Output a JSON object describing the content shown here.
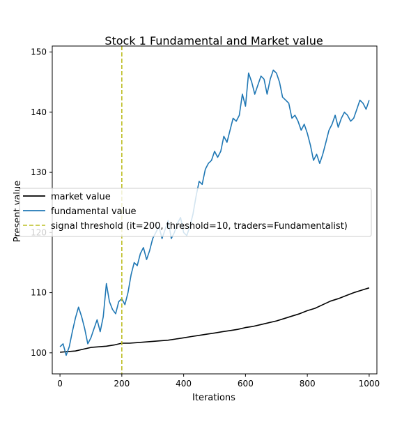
{
  "chart_data": {
    "type": "line",
    "title": "Stock 1 Fundamental and Market value",
    "xlabel": "Iterations",
    "ylabel": "Present value",
    "xlim": [
      -25,
      1025
    ],
    "ylim": [
      96.5,
      151
    ],
    "xticks": [
      "0",
      "200",
      "400",
      "600",
      "800",
      "1000"
    ],
    "yticks": [
      "100",
      "110",
      "120",
      "130",
      "140",
      "150"
    ],
    "grid": false,
    "legend_position": "center-left",
    "series": [
      {
        "name": "market value",
        "color": "#000000",
        "style": "solid",
        "x": [
          0,
          25,
          50,
          75,
          100,
          125,
          150,
          175,
          200,
          225,
          250,
          275,
          300,
          325,
          350,
          375,
          400,
          425,
          450,
          475,
          500,
          525,
          550,
          575,
          600,
          625,
          650,
          675,
          700,
          725,
          750,
          775,
          800,
          825,
          850,
          875,
          900,
          925,
          950,
          975,
          1000
        ],
        "values": [
          100.1,
          100.2,
          100.3,
          100.6,
          100.9,
          101.0,
          101.1,
          101.3,
          101.6,
          101.6,
          101.7,
          101.8,
          101.9,
          102.0,
          102.1,
          102.3,
          102.5,
          102.7,
          102.9,
          103.1,
          103.3,
          103.5,
          103.7,
          103.9,
          104.2,
          104.4,
          104.7,
          105.0,
          105.3,
          105.7,
          106.1,
          106.5,
          107.0,
          107.4,
          108.0,
          108.6,
          109.0,
          109.5,
          110.0,
          110.4,
          110.8
        ]
      },
      {
        "name": "fundamental value",
        "color": "#1f77b4",
        "style": "solid",
        "x": [
          0,
          10,
          20,
          30,
          40,
          50,
          60,
          70,
          80,
          90,
          100,
          110,
          120,
          130,
          140,
          150,
          160,
          170,
          180,
          190,
          200,
          210,
          220,
          230,
          240,
          250,
          260,
          270,
          280,
          290,
          300,
          310,
          320,
          330,
          340,
          350,
          360,
          370,
          380,
          390,
          400,
          410,
          420,
          430,
          440,
          450,
          460,
          470,
          480,
          490,
          500,
          510,
          520,
          530,
          540,
          550,
          560,
          570,
          580,
          590,
          600,
          610,
          620,
          630,
          640,
          650,
          660,
          670,
          680,
          690,
          700,
          710,
          720,
          730,
          740,
          750,
          760,
          770,
          780,
          790,
          800,
          810,
          820,
          830,
          840,
          850,
          860,
          870,
          880,
          890,
          900,
          910,
          920,
          930,
          940,
          950,
          960,
          970,
          980,
          990,
          1000
        ],
        "values": [
          101.0,
          101.5,
          99.6,
          101.0,
          103.5,
          105.8,
          107.6,
          106.0,
          104.0,
          101.5,
          102.5,
          104.0,
          105.5,
          103.5,
          106.0,
          111.5,
          108.5,
          107.2,
          106.5,
          108.5,
          109.0,
          108.0,
          110.0,
          113.0,
          115.0,
          114.5,
          116.5,
          117.5,
          115.5,
          117.0,
          119.0,
          120.0,
          121.0,
          119.0,
          120.5,
          122.0,
          119.0,
          120.0,
          121.5,
          122.5,
          120.0,
          119.5,
          121.0,
          123.0,
          126.0,
          128.5,
          128.0,
          130.5,
          131.5,
          132.0,
          133.5,
          132.5,
          133.5,
          136.0,
          135.0,
          137.0,
          139.0,
          138.5,
          139.5,
          143.0,
          141.0,
          146.5,
          145.0,
          143.0,
          144.5,
          146.0,
          145.5,
          143.0,
          145.5,
          147.0,
          146.5,
          145.0,
          142.5,
          142.0,
          141.5,
          139.0,
          139.5,
          138.5,
          137.0,
          138.0,
          136.5,
          134.5,
          132.0,
          133.0,
          131.5,
          133.0,
          135.0,
          137.0,
          138.0,
          139.5,
          137.5,
          139.0,
          140.0,
          139.5,
          138.5,
          139.0,
          140.5,
          142.0,
          141.5,
          140.5,
          142.0
        ]
      }
    ],
    "threshold": {
      "name": "signal threshold (it=200, threshold=10, traders=Fundamentalist)",
      "x": 200,
      "color": "#bcbd22",
      "style": "dashed"
    }
  }
}
